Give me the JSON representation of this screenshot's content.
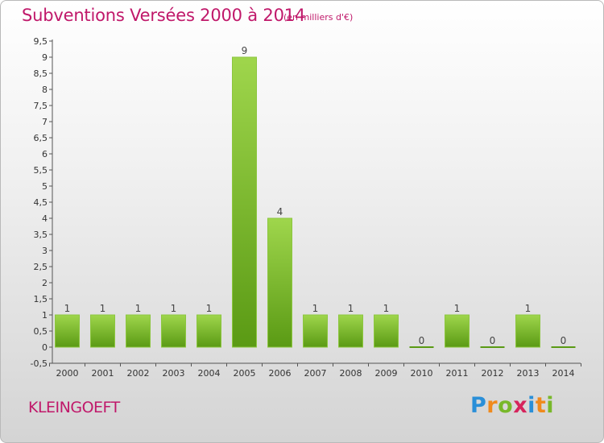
{
  "title": "Subventions Versées 2000 à 2014",
  "subtitle": "(en milliers d'€)",
  "commune": "KLEINGOEFT",
  "logo": {
    "letters": [
      {
        "char": "P",
        "color": "#2a8fd8"
      },
      {
        "char": "r",
        "color": "#f08a1c"
      },
      {
        "char": "o",
        "color": "#78b82a"
      },
      {
        "char": "x",
        "color": "#d6245c"
      },
      {
        "char": "i",
        "color": "#2a8fd8"
      },
      {
        "char": "t",
        "color": "#f08a1c"
      },
      {
        "char": "i",
        "color": "#78b82a"
      }
    ]
  },
  "colors": {
    "title": "#c0186a",
    "bar_light": "#9fd64c",
    "bar_dark": "#5a9a14",
    "axis": "#555555"
  },
  "chart_data": {
    "type": "bar",
    "categories": [
      "2000",
      "2001",
      "2002",
      "2003",
      "2004",
      "2005",
      "2006",
      "2007",
      "2008",
      "2009",
      "2010",
      "2011",
      "2012",
      "2013",
      "2014"
    ],
    "values": [
      1,
      1,
      1,
      1,
      1,
      9,
      4,
      1,
      1,
      1,
      0,
      1,
      0,
      1,
      0
    ],
    "value_labels": [
      "1",
      "1",
      "1",
      "1",
      "1",
      "9",
      "4",
      "1",
      "1",
      "1",
      "0",
      "1",
      "0",
      "1",
      "0"
    ],
    "ylim": [
      -0.5,
      9.5
    ],
    "yticks": [
      "-0,5",
      "0",
      "0,5",
      "1",
      "1,5",
      "2",
      "2,5",
      "3",
      "3,5",
      "4",
      "4,5",
      "5",
      "5,5",
      "6",
      "6,5",
      "7",
      "7,5",
      "8",
      "8,5",
      "9",
      "9,5"
    ],
    "ytick_values": [
      -0.5,
      0,
      0.5,
      1,
      1.5,
      2,
      2.5,
      3,
      3.5,
      4,
      4.5,
      5,
      5.5,
      6,
      6.5,
      7,
      7.5,
      8,
      8.5,
      9,
      9.5
    ],
    "grid": false,
    "legend": "none"
  }
}
